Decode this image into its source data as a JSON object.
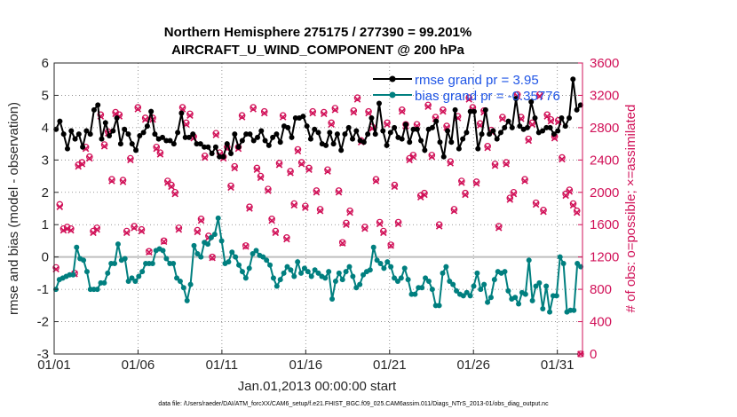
{
  "chart_data": {
    "type": "line",
    "title": "Northern Hemisphere 275175 / 277390 = 99.201%",
    "subtitle": "AIRCRAFT_U_WIND_COMPONENT @ 200 hPa",
    "xlabel": "Jan.01,2013 00:00:00 start",
    "ylabel_left": "rmse and bias (model - observation)",
    "ylabel_right": "# of obs: o=possible; ×=assimilated",
    "xlim": [
      0,
      31.5
    ],
    "ylim_left": [
      -3,
      6
    ],
    "ylim_right": [
      0,
      3600
    ],
    "x_ticks": [
      {
        "v": 0,
        "label": "01/01"
      },
      {
        "v": 5,
        "label": "01/06"
      },
      {
        "v": 10,
        "label": "01/11"
      },
      {
        "v": 15,
        "label": "01/16"
      },
      {
        "v": 20,
        "label": "01/21"
      },
      {
        "v": 25,
        "label": "01/26"
      },
      {
        "v": 30,
        "label": "01/31"
      }
    ],
    "y_ticks_left": [
      "-3",
      "-2",
      "-1",
      "0",
      "1",
      "2",
      "3",
      "4",
      "5",
      "6"
    ],
    "y_ticks_right": [
      "0",
      "400",
      "800",
      "1200",
      "1600",
      "2000",
      "2400",
      "2800",
      "3200",
      "3600"
    ],
    "grid": true,
    "legend_position": "top-right",
    "colors": {
      "rmse": "#000000",
      "bias": "#007f7f",
      "obs": "#d11158",
      "zero_line": "#bfbfbf",
      "legend_text": "#1f55e6"
    },
    "series": [
      {
        "name": "rmse grand pr = 3.95",
        "axis": "left",
        "values": [
          3.95,
          4.2,
          3.8,
          3.35,
          3.9,
          3.65,
          3.8,
          3.4,
          3.9,
          3.8,
          4.55,
          4.7,
          3.65,
          4.15,
          3.75,
          3.9,
          4.3,
          3.5,
          3.95,
          3.8,
          3.5,
          3.3,
          3.75,
          3.85,
          4.05,
          4.5,
          3.8,
          3.65,
          3.7,
          3.6,
          3.6,
          3.5,
          3.85,
          4.45,
          3.7,
          3.7,
          3.8,
          3.5,
          3.5,
          3.4,
          3.4,
          3.2,
          3.4,
          3.1,
          3.1,
          3.5,
          3.2,
          3.8,
          3.4,
          3.6,
          3.8,
          3.8,
          3.6,
          3.7,
          3.9,
          3.6,
          3.45,
          3.7,
          3.8,
          3.55,
          4.05,
          4.0,
          3.7,
          4.3,
          4.3,
          4.35,
          4.05,
          3.65,
          3.95,
          3.85,
          3.5,
          3.45,
          3.85,
          3.5,
          3.8,
          3.3,
          3.8,
          4.0,
          3.65,
          3.9,
          3.6,
          3.55,
          3.8,
          4.3,
          3.8,
          4.75,
          3.9,
          3.45,
          3.85,
          4.0,
          3.7,
          3.65,
          4.1,
          3.55,
          3.95,
          3.95,
          3.6,
          3.3,
          3.95,
          4.0,
          4.2,
          3.55,
          3.1,
          3.9,
          3.55,
          4.55,
          3.35,
          3.65,
          3.85,
          4.5,
          4.5,
          3.35,
          3.8,
          4.55,
          3.8,
          3.9,
          3.65,
          3.85,
          4.0,
          4.2,
          4.0,
          4.9,
          4.05,
          3.95,
          4.0,
          4.8,
          4.3,
          3.85,
          3.9,
          4.0,
          4.0,
          3.8,
          3.9,
          4.3,
          4.05,
          4.3,
          5.5,
          4.55,
          4.7
        ]
      },
      {
        "name": "bias grand pr = -0.35776",
        "axis": "left",
        "values": [
          -1.0,
          -0.7,
          -0.65,
          -0.6,
          -0.55,
          -0.55,
          0.3,
          -0.05,
          -0.1,
          -0.45,
          -1.0,
          -1.0,
          -1.0,
          -0.8,
          -0.8,
          -0.5,
          -0.2,
          -0.2,
          0.4,
          -0.1,
          -0.05,
          -0.75,
          -0.65,
          -0.75,
          -0.6,
          -0.45,
          -0.2,
          -0.2,
          -0.2,
          0.2,
          0.25,
          0.2,
          -0.05,
          -0.2,
          -0.2,
          -0.65,
          -0.75,
          -0.95,
          -1.35,
          -0.85,
          0.35,
          0.1,
          0.0,
          0.45,
          0.4,
          0.6,
          0.7,
          1.2,
          0.5,
          -0.2,
          -0.15,
          0.15,
          0.0,
          -0.25,
          -0.45,
          -0.65,
          -0.35,
          0.1,
          0.2,
          0.05,
          0.0,
          -0.1,
          -0.25,
          -0.65,
          -0.9,
          -0.7,
          -0.5,
          -0.3,
          -0.4,
          -0.6,
          -0.15,
          -0.5,
          -0.35,
          -0.45,
          -0.6,
          -0.4,
          -0.5,
          -0.6,
          -0.65,
          -0.45,
          -1.3,
          -0.75,
          -0.5,
          -0.7,
          -0.45,
          -0.3,
          -0.6,
          -0.95,
          -0.85,
          -0.55,
          -0.45,
          -0.4,
          0.3,
          -0.1,
          -0.2,
          -0.35,
          -0.15,
          -0.3,
          -0.65,
          -0.75,
          -0.65,
          -0.35,
          -0.7,
          -1.15,
          -1.15,
          -0.95,
          -0.95,
          -0.65,
          -0.75,
          -1.0,
          -1.5,
          -1.5,
          -0.5,
          -0.3,
          -0.75,
          -0.85,
          -1.05,
          -1.15,
          -1.2,
          -1.1,
          -1.2,
          -0.9,
          -0.5,
          -1.0,
          -0.85,
          -1.4,
          -1.25,
          -0.7,
          -0.45,
          -0.5,
          -0.45,
          -1.05,
          -1.3,
          -1.25,
          -1.45,
          -1.1,
          -1.15,
          -0.1,
          -1.35,
          -0.9,
          -0.8,
          -1.6,
          -0.9,
          -1.7,
          -1.2,
          -1.2,
          0.0,
          -0.2,
          -1.7,
          -1.65,
          -1.65,
          -0.2,
          -0.3
        ]
      },
      {
        "name": "obs possible",
        "axis": "right",
        "marker": "o",
        "values": [
          1070,
          1850,
          1550,
          1570,
          1550,
          1000,
          2340,
          2370,
          2560,
          2440,
          1520,
          1560,
          2960,
          2590,
          2750,
          2160,
          2990,
          2960,
          2150,
          1520,
          2420,
          1580,
          3050,
          1540,
          2920,
          1270,
          2920,
          2560,
          2490,
          1400,
          2140,
          2090,
          2000,
          1560,
          3050,
          2860,
          2970,
          2690,
          1530,
          1670,
          2450,
          1460,
          1200,
          2730,
          2490,
          2440,
          2560,
          2080,
          2320,
          2560,
          2950,
          1340,
          1820,
          3050,
          2300,
          2200,
          3000,
          2040,
          1670,
          1520,
          2360,
          2950,
          1440,
          2260,
          1860,
          2530,
          2370,
          1830,
          2300,
          3000,
          2020,
          1790,
          2990,
          2280,
          2860,
          3040,
          2020,
          1380,
          1620,
          1770,
          3010,
          3170,
          2640,
          1570,
          3000,
          2810,
          2160,
          1630,
          1520,
          2860,
          1350,
          2090,
          1630,
          3020,
          2840,
          2420,
          2460,
          2840,
          1960,
          1990,
          3080,
          2460,
          2930,
          1600,
          3020,
          2820,
          2380,
          1790,
          2940,
          2140,
          1990,
          3170,
          3050,
          2130,
          2850,
          3010,
          2570,
          2770,
          2350,
          1580,
          2930,
          2370,
          1930,
          2000,
          3210,
          2930,
          2160,
          2660,
          2860,
          1870,
          3210,
          1780,
          2960,
          2900,
          2690,
          2890,
          2430,
          1980,
          2030,
          1860,
          1770,
          0
        ]
      },
      {
        "name": "obs assimilated",
        "axis": "right",
        "marker": "x",
        "values": [
          1050,
          1820,
          1530,
          1550,
          1530,
          990,
          2320,
          2350,
          2540,
          2420,
          1500,
          1540,
          2940,
          2570,
          2730,
          2140,
          2970,
          2940,
          2130,
          1500,
          2400,
          1560,
          3030,
          1520,
          2900,
          1260,
          2900,
          2540,
          2470,
          1390,
          2120,
          2070,
          1980,
          1540,
          3030,
          2840,
          2950,
          2670,
          1510,
          1650,
          2430,
          1440,
          1190,
          2710,
          2470,
          2420,
          2540,
          2060,
          2300,
          2540,
          2930,
          1330,
          1800,
          3030,
          2280,
          2180,
          2980,
          2020,
          1650,
          1500,
          2340,
          2930,
          1420,
          2240,
          1840,
          2510,
          2350,
          1810,
          2280,
          2980,
          2000,
          1770,
          2970,
          2260,
          2840,
          3020,
          2000,
          1370,
          1600,
          1750,
          2990,
          3150,
          2620,
          1550,
          2980,
          2790,
          2140,
          1610,
          1500,
          2840,
          1340,
          2070,
          1610,
          3000,
          2820,
          2400,
          2440,
          2820,
          1940,
          1970,
          3060,
          2440,
          2910,
          1580,
          3000,
          2800,
          2360,
          1770,
          2920,
          2120,
          1970,
          3150,
          3030,
          2110,
          2830,
          2990,
          2550,
          2750,
          2330,
          1560,
          2910,
          2350,
          1910,
          1980,
          3190,
          2910,
          2140,
          2640,
          2840,
          1850,
          3190,
          1760,
          2940,
          2880,
          2670,
          2870,
          2410,
          1960,
          2010,
          1840,
          1750,
          0
        ]
      }
    ]
  },
  "footer": "data file: /Users/raeder/DAI/ATM_forcXX/CAM6_setup/f.e21.FHIST_BGC.f09_025.CAM6assim.011/Diags_NTrS_2013-01/obs_diag_output.nc"
}
